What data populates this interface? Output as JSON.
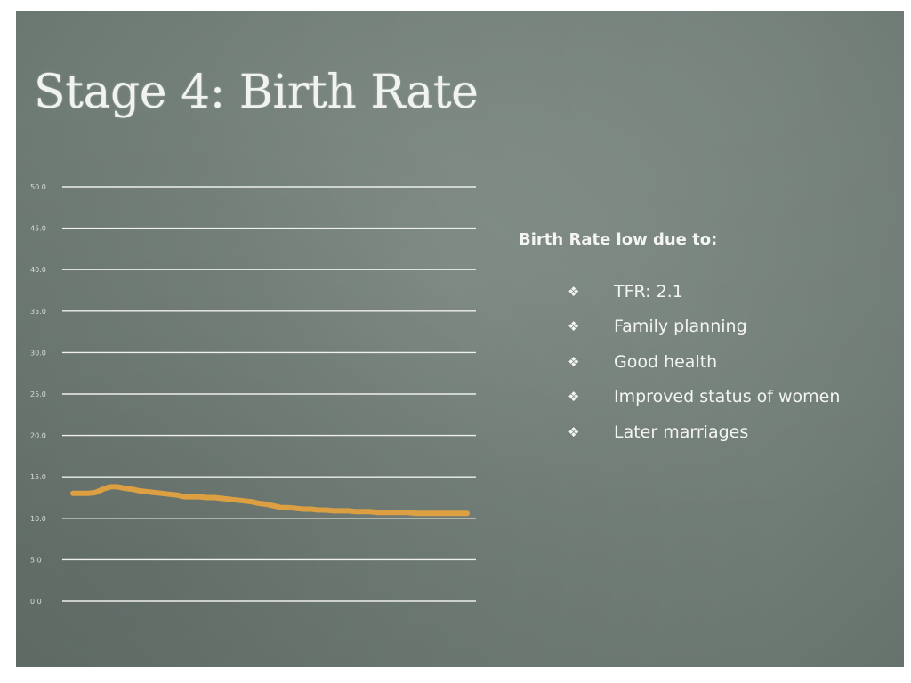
{
  "slide": {
    "title": "Stage 4: Birth Rate"
  },
  "chart_data": {
    "type": "line",
    "title": "",
    "xlabel": "",
    "ylabel": "",
    "ylim": [
      0,
      50
    ],
    "yticks": [
      "0.0",
      "5.0",
      "10.0",
      "15.0",
      "20.0",
      "25.0",
      "30.0",
      "35.0",
      "40.0",
      "45.0",
      "50.0"
    ],
    "grid": true,
    "legend": "none",
    "x": [
      1,
      2,
      3,
      4,
      5,
      6,
      7,
      8,
      9,
      10,
      11,
      12,
      13,
      14,
      15,
      16,
      17,
      18,
      19,
      20,
      21,
      22,
      23,
      24,
      25,
      26,
      27,
      28,
      29,
      30,
      31,
      32,
      33,
      34,
      35,
      36,
      37,
      38,
      39,
      40,
      41,
      42,
      43,
      44,
      45,
      46,
      47,
      48,
      49,
      50,
      51,
      52,
      53,
      54
    ],
    "series": [
      {
        "name": "",
        "color": "#e6a33e",
        "values": [
          13.0,
          13.0,
          13.0,
          13.1,
          13.5,
          13.8,
          13.8,
          13.6,
          13.5,
          13.3,
          13.2,
          13.1,
          13.0,
          12.9,
          12.8,
          12.6,
          12.6,
          12.6,
          12.5,
          12.5,
          12.4,
          12.3,
          12.2,
          12.1,
          12.0,
          11.8,
          11.7,
          11.5,
          11.3,
          11.3,
          11.2,
          11.1,
          11.1,
          11.0,
          11.0,
          10.9,
          10.9,
          10.9,
          10.8,
          10.8,
          10.8,
          10.7,
          10.7,
          10.7,
          10.7,
          10.7,
          10.6,
          10.6,
          10.6,
          10.6,
          10.6,
          10.6,
          10.6,
          10.6
        ]
      }
    ]
  },
  "bullets": {
    "heading": "Birth Rate low due to:",
    "icon": "diamond-bullet-icon",
    "items": [
      "TFR: 2.1",
      "Family planning",
      "Good health",
      "Improved status of women",
      "Later marriages"
    ]
  }
}
